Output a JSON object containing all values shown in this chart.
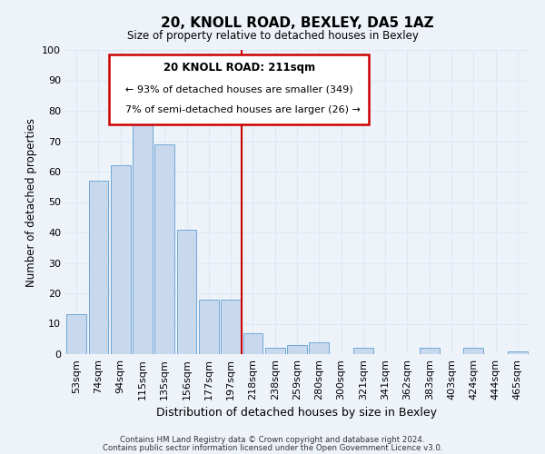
{
  "title": "20, KNOLL ROAD, BEXLEY, DA5 1AZ",
  "subtitle": "Size of property relative to detached houses in Bexley",
  "xlabel": "Distribution of detached houses by size in Bexley",
  "ylabel": "Number of detached properties",
  "bar_color": "#c8d9ed",
  "bar_edge_color": "#6fa8d6",
  "categories": [
    "53sqm",
    "74sqm",
    "94sqm",
    "115sqm",
    "135sqm",
    "156sqm",
    "177sqm",
    "197sqm",
    "218sqm",
    "238sqm",
    "259sqm",
    "280sqm",
    "300sqm",
    "321sqm",
    "341sqm",
    "362sqm",
    "383sqm",
    "403sqm",
    "424sqm",
    "444sqm",
    "465sqm"
  ],
  "values": [
    13,
    57,
    62,
    76,
    69,
    41,
    18,
    18,
    7,
    2,
    3,
    4,
    0,
    2,
    0,
    0,
    2,
    0,
    2,
    0,
    1
  ],
  "vline_x_index": 8,
  "vline_color": "#cc0000",
  "ylim": [
    0,
    100
  ],
  "annotation_title": "20 KNOLL ROAD: 211sqm",
  "annotation_line1": "← 93% of detached houses are smaller (349)",
  "annotation_line2": "7% of semi-detached houses are larger (26) →",
  "annotation_box_edge_color": "#cc0000",
  "footer1": "Contains HM Land Registry data © Crown copyright and database right 2024.",
  "footer2": "Contains public sector information licensed under the Open Government Licence v3.0.",
  "grid_color": "#dde8f5",
  "bg_color": "#eef3fa"
}
